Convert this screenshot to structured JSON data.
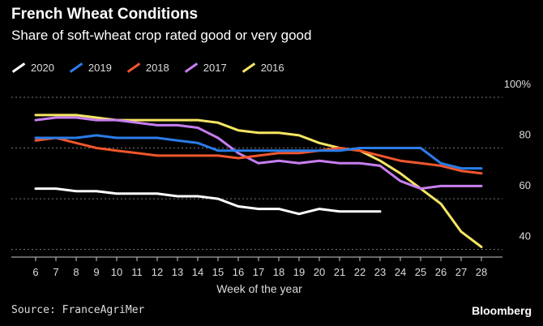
{
  "chart_data": {
    "type": "line",
    "title": "French Wheat Conditions",
    "subtitle": "Share of soft-wheat crop rated good or very good",
    "xlabel": "Week of the year",
    "ylabel": "",
    "x": [
      6,
      7,
      8,
      9,
      10,
      11,
      12,
      13,
      14,
      15,
      16,
      17,
      18,
      19,
      20,
      21,
      22,
      23,
      24,
      25,
      26,
      27,
      28
    ],
    "xlim": [
      6,
      28
    ],
    "ylim": [
      37,
      100
    ],
    "yticks": [
      40,
      60,
      80
    ],
    "yticks_label": [
      "40",
      "60",
      "80",
      "100%"
    ],
    "yticks_all": [
      40,
      60,
      80,
      100
    ],
    "grid": "horizontal",
    "legend": "top-left",
    "series": [
      {
        "name": "2020",
        "color": "#ffffff",
        "values": [
          64,
          64,
          63,
          63,
          62,
          62,
          62,
          61,
          61,
          60,
          57,
          56,
          56,
          54,
          56,
          55,
          55,
          55,
          null,
          null,
          null,
          null,
          null
        ]
      },
      {
        "name": "2019",
        "color": "#2b7de9",
        "values": [
          84,
          84,
          84,
          85,
          84,
          84,
          84,
          83,
          82,
          79,
          79,
          79,
          79,
          79,
          79,
          79,
          80,
          80,
          80,
          80,
          74,
          72,
          72
        ]
      },
      {
        "name": "2018",
        "color": "#f0562d",
        "values": [
          83,
          84,
          82,
          80,
          79,
          78,
          77,
          77,
          77,
          77,
          76,
          77,
          78,
          78,
          79,
          80,
          79,
          77,
          75,
          74,
          73,
          71,
          70
        ]
      },
      {
        "name": "2017",
        "color": "#c77ef0",
        "values": [
          91,
          92,
          92,
          91,
          91,
          90,
          89,
          89,
          88,
          84,
          78,
          74,
          75,
          74,
          75,
          74,
          74,
          73,
          67,
          64,
          65,
          65,
          65
        ]
      },
      {
        "name": "2016",
        "color": "#f5e663",
        "values": [
          93,
          93,
          93,
          92,
          91,
          91,
          91,
          91,
          91,
          90,
          87,
          86,
          86,
          85,
          82,
          80,
          79,
          75,
          70,
          64,
          58,
          47,
          41
        ]
      }
    ]
  },
  "source_text": "Source: FranceAgriMer",
  "brand_text": "Bloomberg"
}
